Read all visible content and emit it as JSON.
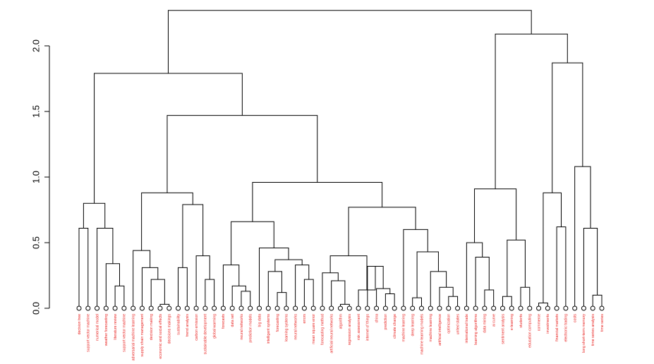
{
  "chart_data": {
    "type": "dendrogram",
    "title": "",
    "xlabel": "",
    "ylabel": "",
    "ylim": [
      0,
      2.25
    ],
    "y_ticks": [
      0.0,
      0.5,
      1.0,
      1.5,
      2.0
    ],
    "y_tick_labels": [
      "0.0",
      "0.5",
      "1.0",
      "1.5",
      "2.0"
    ],
    "colors": {
      "branch": "#000000",
      "leaf_label": "#e8201e",
      "leaf_point": "#000000"
    },
    "leaves": [
      "decision tree",
      "support vector machine",
      "numerical model",
      "weather forecasting",
      "literature review",
      "support vector machine",
      "adversarial machine learning",
      "supply chain management",
      "decision making",
      "economic and social effects",
      "decisions makings",
      "sustainability",
      "trend analysis",
      "carbon emission",
      "sustainable development",
      "global warming",
      "forecasts",
      "data set",
      "neural networks",
      "prediction models",
      "big data",
      "intelligent systems",
      "forecasting",
      "learning systems",
      "neural networks",
      "errors",
      "mean square error",
      "forecasting method",
      "artificial neural networks",
      "algorithm",
      "regression analysis",
      "risk assessment",
      "internet of things",
      "china",
      "prediction",
      "climate change",
      "machine learning",
      "deep learning",
      "machine learning models",
      "machine learning",
      "artificial intelligence",
      "optimization",
      "united states",
      "international trade",
      "learning algorithms",
      "data mining",
      "ai curve",
      "sentiment analysis",
      "e-learning",
      "students",
      "education computing",
      "commerce",
      "investments",
      "financial markets",
      "electronic trading",
      "costs",
      "long short-term memory",
      "time series analysis",
      "time series"
    ],
    "merges": [
      {
        "a": "L0",
        "b": "L1",
        "h": 0.61
      },
      {
        "a": "L4",
        "b": "L5",
        "h": 0.17
      },
      {
        "a": "L3",
        "b": "M1",
        "h": 0.34
      },
      {
        "a": "L2",
        "b": "M2",
        "h": 0.61
      },
      {
        "a": "M0",
        "b": "M3",
        "h": 0.8
      },
      {
        "a": "L9",
        "b": "L10",
        "h": 0.03
      },
      {
        "a": "L8",
        "b": "M5",
        "h": 0.22
      },
      {
        "a": "L7",
        "b": "M6",
        "h": 0.31
      },
      {
        "a": "L6",
        "b": "M7",
        "h": 0.44
      },
      {
        "a": "L14",
        "b": "L15",
        "h": 0.22
      },
      {
        "a": "L13",
        "b": "M9",
        "h": 0.4
      },
      {
        "a": "L11",
        "b": "L12",
        "h": 0.31
      },
      {
        "a": "M11",
        "b": "M10",
        "h": 0.79
      },
      {
        "a": "M8",
        "b": "M12",
        "h": 0.88
      },
      {
        "a": "L18",
        "b": "L19",
        "h": 0.13
      },
      {
        "a": "L17",
        "b": "M14",
        "h": 0.17
      },
      {
        "a": "L16",
        "b": "M15",
        "h": 0.33
      },
      {
        "a": "L22",
        "b": "L23",
        "h": 0.12
      },
      {
        "a": "L21",
        "b": "M17",
        "h": 0.28
      },
      {
        "a": "L25",
        "b": "L26",
        "h": 0.22
      },
      {
        "a": "L24",
        "b": "M19",
        "h": 0.33
      },
      {
        "a": "M18",
        "b": "M20",
        "h": 0.37
      },
      {
        "a": "L20",
        "b": "M21",
        "h": 0.46
      },
      {
        "a": "M16",
        "b": "M22",
        "h": 0.66
      },
      {
        "a": "L29",
        "b": "L30",
        "h": 0.03
      },
      {
        "a": "L28",
        "b": "M24",
        "h": 0.21
      },
      {
        "a": "L27",
        "b": "M25",
        "h": 0.27
      },
      {
        "a": "L34",
        "b": "L35",
        "h": 0.11
      },
      {
        "a": "L33",
        "b": "M27",
        "h": 0.15
      },
      {
        "a": "L32",
        "b": "M28",
        "h": 0.32
      },
      {
        "a": "L31",
        "b": "M29",
        "h": 0.14
      },
      {
        "a": "M26",
        "b": "M30",
        "h": 0.4
      },
      {
        "a": "L37",
        "b": "L38",
        "h": 0.08
      },
      {
        "a": "L41",
        "b": "L42",
        "h": 0.09
      },
      {
        "a": "L40",
        "b": "M33",
        "h": 0.16
      },
      {
        "a": "L39",
        "b": "M34",
        "h": 0.28
      },
      {
        "a": "M32",
        "b": "M35",
        "h": 0.43
      },
      {
        "a": "L36",
        "b": "M36",
        "h": 0.6
      },
      {
        "a": "M31",
        "b": "M37",
        "h": 0.77
      },
      {
        "a": "M23",
        "b": "M38",
        "h": 0.96
      },
      {
        "a": "M13",
        "b": "M39",
        "h": 1.47
      },
      {
        "a": "M4",
        "b": "M40",
        "h": 1.79
      },
      {
        "a": "L45",
        "b": "L46",
        "h": 0.14
      },
      {
        "a": "L44",
        "b": "M42",
        "h": 0.39
      },
      {
        "a": "L43",
        "b": "M43",
        "h": 0.5
      },
      {
        "a": "L47",
        "b": "L48",
        "h": 0.09
      },
      {
        "a": "L49",
        "b": "L50",
        "h": 0.16
      },
      {
        "a": "M45",
        "b": "M46",
        "h": 0.52
      },
      {
        "a": "M44",
        "b": "M47",
        "h": 0.91
      },
      {
        "a": "L51",
        "b": "L52",
        "h": 0.04
      },
      {
        "a": "L53",
        "b": "L54",
        "h": 0.62
      },
      {
        "a": "M49",
        "b": "M50",
        "h": 0.88
      },
      {
        "a": "L57",
        "b": "L58",
        "h": 0.1
      },
      {
        "a": "L56",
        "b": "M52",
        "h": 0.61
      },
      {
        "a": "L55",
        "b": "M53",
        "h": 1.08
      },
      {
        "a": "M51",
        "b": "M54",
        "h": 1.87
      },
      {
        "a": "M48",
        "b": "M55",
        "h": 2.09
      },
      {
        "a": "M41",
        "b": "M56",
        "h": 2.27
      }
    ]
  }
}
